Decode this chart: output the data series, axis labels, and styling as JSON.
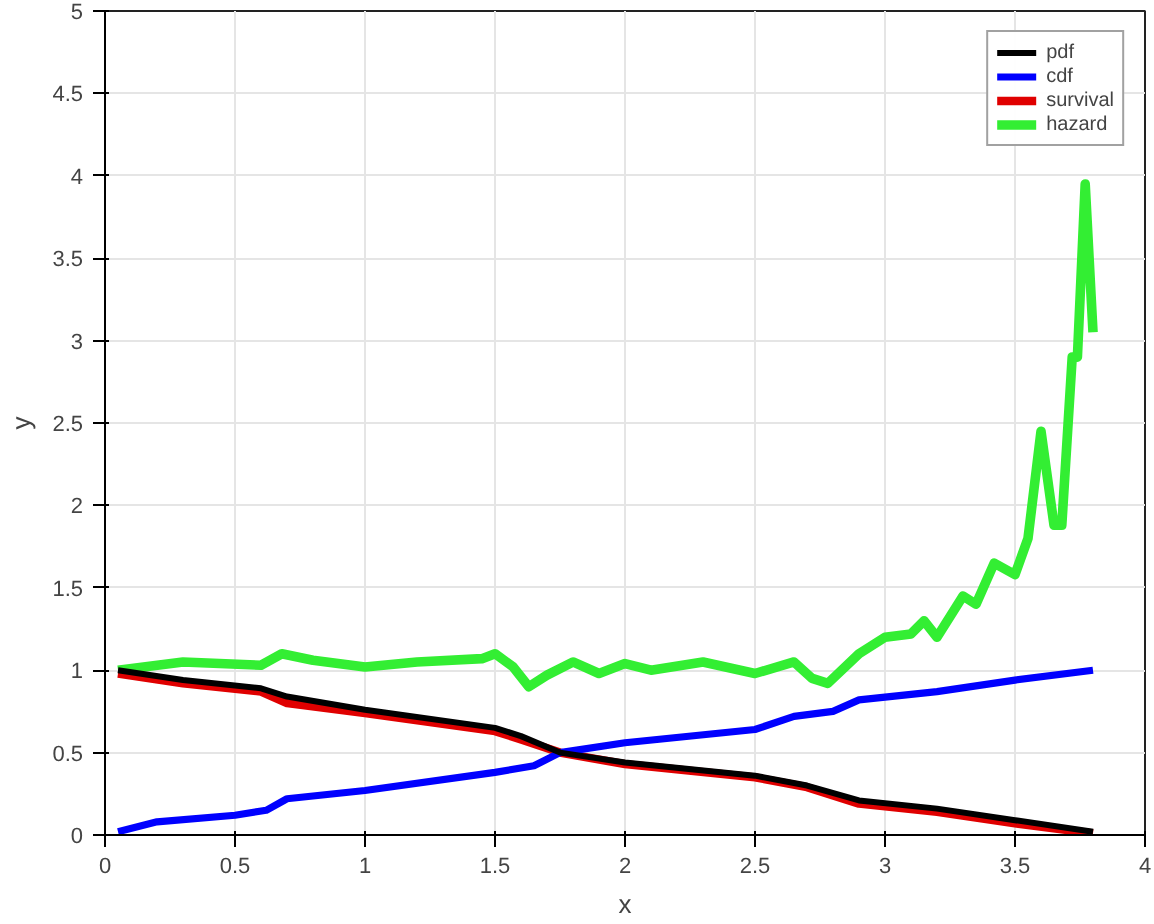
{
  "chart_data": {
    "type": "line",
    "xlabel": "x",
    "ylabel": "y",
    "xlim": [
      0,
      4
    ],
    "ylim": [
      0,
      5
    ],
    "xticks": [
      0,
      0.5,
      1,
      1.5,
      2,
      2.5,
      3,
      3.5,
      4
    ],
    "yticks": [
      0,
      0.5,
      1,
      1.5,
      2,
      2.5,
      3,
      3.5,
      4,
      4.5,
      5
    ],
    "grid": true,
    "legend": "top right",
    "series": [
      {
        "name": "pdf",
        "color": "#000000",
        "x": [
          0.05,
          0.3,
          0.6,
          0.7,
          1.0,
          1.5,
          1.6,
          1.75,
          2.0,
          2.5,
          2.7,
          2.9,
          3.2,
          3.5,
          3.8
        ],
        "values": [
          1.0,
          0.94,
          0.89,
          0.84,
          0.76,
          0.65,
          0.6,
          0.5,
          0.44,
          0.36,
          0.3,
          0.21,
          0.16,
          0.09,
          0.02
        ]
      },
      {
        "name": "cdf",
        "color": "#0000ff",
        "x": [
          0.05,
          0.2,
          0.5,
          0.62,
          0.7,
          1.0,
          1.5,
          1.65,
          1.75,
          2.0,
          2.5,
          2.65,
          2.8,
          2.9,
          3.2,
          3.5,
          3.8
        ],
        "values": [
          0.02,
          0.08,
          0.12,
          0.15,
          0.22,
          0.27,
          0.38,
          0.42,
          0.5,
          0.56,
          0.64,
          0.72,
          0.75,
          0.82,
          0.87,
          0.94,
          1.0
        ]
      },
      {
        "name": "survival",
        "color": "#e00000",
        "x": [
          0.05,
          0.3,
          0.6,
          0.7,
          1.0,
          1.5,
          1.6,
          1.75,
          2.0,
          2.5,
          2.7,
          2.9,
          3.2,
          3.5,
          3.8
        ],
        "values": [
          0.98,
          0.92,
          0.87,
          0.8,
          0.74,
          0.63,
          0.58,
          0.5,
          0.43,
          0.35,
          0.29,
          0.19,
          0.14,
          0.07,
          0.01
        ]
      },
      {
        "name": "hazard",
        "color": "#33ee33",
        "x": [
          0.05,
          0.3,
          0.6,
          0.68,
          0.8,
          1.0,
          1.2,
          1.45,
          1.5,
          1.57,
          1.63,
          1.7,
          1.8,
          1.9,
          2.0,
          2.1,
          2.3,
          2.5,
          2.65,
          2.72,
          2.78,
          2.9,
          3.0,
          3.1,
          3.15,
          3.2,
          3.3,
          3.35,
          3.42,
          3.5,
          3.55,
          3.6,
          3.65,
          3.68,
          3.72,
          3.74,
          3.77,
          3.8
        ],
        "values": [
          1.0,
          1.05,
          1.03,
          1.1,
          1.06,
          1.02,
          1.05,
          1.07,
          1.1,
          1.02,
          0.9,
          0.97,
          1.05,
          0.98,
          1.04,
          1.0,
          1.05,
          0.98,
          1.05,
          0.95,
          0.92,
          1.1,
          1.2,
          1.22,
          1.3,
          1.2,
          1.45,
          1.4,
          1.65,
          1.58,
          1.8,
          2.45,
          1.88,
          1.88,
          2.9,
          2.9,
          3.95,
          3.05
        ]
      }
    ]
  }
}
